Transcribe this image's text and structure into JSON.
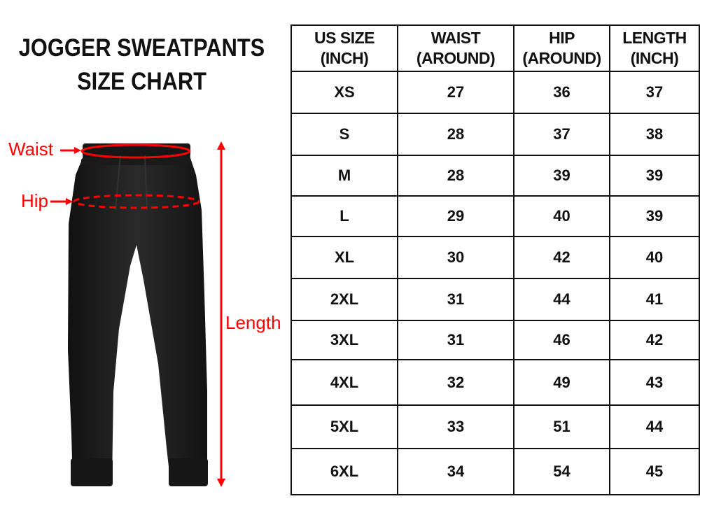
{
  "title": {
    "line1": "JOGGER SWEATPANTS",
    "line2": "SIZE CHART"
  },
  "figure": {
    "waist_label": "Waist",
    "hip_label": "Hip",
    "length_label": "Length",
    "accent_color": "#ff0000",
    "garment_color": "#1c1c1c"
  },
  "table": {
    "headers": [
      {
        "line1": "US SIZE",
        "line2": "(INCH)"
      },
      {
        "line1": "WAIST",
        "line2": "(AROUND)"
      },
      {
        "line1": "HIP",
        "line2": "(AROUND)"
      },
      {
        "line1": "LENGTH",
        "line2": "(INCH)"
      }
    ],
    "rows": [
      [
        "XS",
        "27",
        "36",
        "37"
      ],
      [
        "S",
        "28",
        "37",
        "38"
      ],
      [
        "M",
        "28",
        "39",
        "39"
      ],
      [
        "L",
        "29",
        "40",
        "39"
      ],
      [
        "XL",
        "30",
        "42",
        "40"
      ],
      [
        "2XL",
        "31",
        "44",
        "41"
      ],
      [
        "3XL",
        "31",
        "46",
        "42"
      ],
      [
        "4XL",
        "32",
        "49",
        "43"
      ],
      [
        "5XL",
        "33",
        "51",
        "44"
      ],
      [
        "6XL",
        "34",
        "54",
        "45"
      ]
    ]
  }
}
